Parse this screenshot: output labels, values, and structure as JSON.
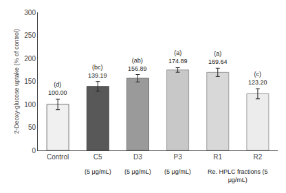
{
  "chart_data": {
    "type": "bar",
    "categories": [
      "Control",
      "C5",
      "D3",
      "P3",
      "R1",
      "R2"
    ],
    "values": [
      100.0,
      139.19,
      156.89,
      174.89,
      169.64,
      123.2
    ],
    "errors": [
      11.5,
      10.5,
      8.0,
      5.0,
      9.0,
      11.0
    ],
    "data_labels": true,
    "value_labels": [
      "100.00",
      "139.19",
      "156.89",
      "174.89",
      "169.64",
      "123.20"
    ],
    "significance_labels": [
      "(d)",
      "(bc)",
      "(ab)",
      "(a)",
      "(a)",
      "(c)"
    ],
    "colors": [
      "#f0f0f0",
      "#585858",
      "#9a9a9a",
      "#c8c8c8",
      "#d8d8d8",
      "#ececec"
    ],
    "edge_colors": [
      "#555555",
      "#333333",
      "#555555",
      "#888888",
      "#888888",
      "#888888"
    ],
    "ylabel": "2-Deoxy-glucose uptake (% of control)",
    "ylim": [
      0,
      300
    ],
    "yticks": [
      0,
      50,
      100,
      150,
      200,
      250,
      300
    ],
    "grid": false,
    "annotations": [
      {
        "text": "(5 μg/mL)",
        "x": [
          "C5"
        ]
      },
      {
        "text": "(5 μg/mL)",
        "x": [
          "D3"
        ]
      },
      {
        "text": "(5 μg/mL)",
        "x": [
          "P3"
        ]
      },
      {
        "text": "Re. HPLC fractions (5\nμg/mL)",
        "x": [
          "R1",
          "R2"
        ]
      }
    ]
  }
}
